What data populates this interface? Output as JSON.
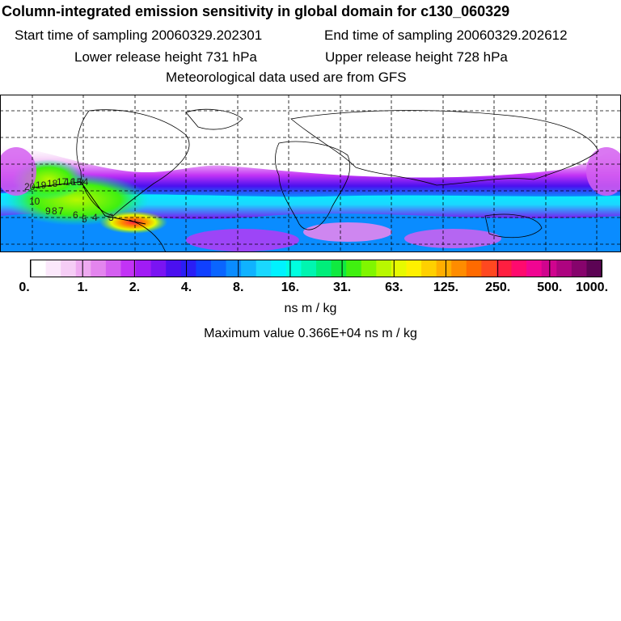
{
  "header": {
    "title": "Column-integrated emission sensitivity in global domain for c130_060329",
    "start_label": "Start time of sampling 20060329.202301",
    "end_label": "End time of sampling 20060329.202612",
    "lower_label": "Lower release height  731 hPa",
    "upper_label": "Upper release height  728 hPa",
    "met_label": "Meteorological data used are from GFS"
  },
  "map": {
    "track_labels": [
      "20",
      "19",
      "18",
      "17",
      "16",
      "15",
      "14",
      "10",
      "9",
      "8",
      "7",
      "6",
      "5",
      "4",
      "3"
    ]
  },
  "colorbar": {
    "tick_labels": [
      "0.",
      "1.",
      "2.",
      "4.",
      "8.",
      "16.",
      "31.",
      "63.",
      "125.",
      "250.",
      "500.",
      "1000."
    ],
    "colors": [
      "#ffffff",
      "#fbe8fb",
      "#f5cdf5",
      "#eeaaf0",
      "#e385ee",
      "#d45ff0",
      "#c233f5",
      "#a11cf5",
      "#7a14f2",
      "#4b10ef",
      "#2a1ef5",
      "#1040ff",
      "#0a65ff",
      "#0a8cff",
      "#10b2ff",
      "#1ad8ff",
      "#00f2ff",
      "#00ffe0",
      "#00f5b0",
      "#00ee7a",
      "#10ea40",
      "#40f010",
      "#80f600",
      "#b8f800",
      "#e6fa00",
      "#fff000",
      "#ffd000",
      "#ffae00",
      "#ff8c00",
      "#ff6a00",
      "#ff4820",
      "#ff1f40",
      "#ff0a6e",
      "#f00592",
      "#d0048e",
      "#ad0480",
      "#86046c",
      "#5c0454"
    ]
  },
  "units_label": "ns m / kg",
  "max_label": "Maximum value  0.366E+04 ns m / kg"
}
